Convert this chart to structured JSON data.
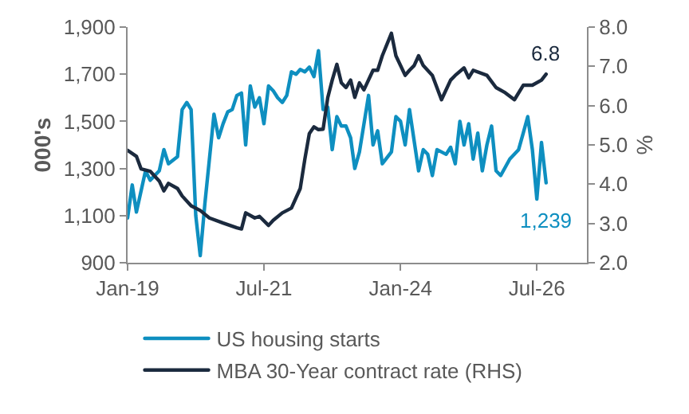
{
  "chart_data": {
    "type": "line",
    "ylabel": "000's",
    "y2label": "%",
    "xlim": [
      "2019-01-01",
      "2027-06-01"
    ],
    "xticks": [
      {
        "value": "2019-01-01",
        "label": "Jan-19"
      },
      {
        "value": "2021-07-01",
        "label": "Jul-21"
      },
      {
        "value": "2024-01-01",
        "label": "Jan-24"
      },
      {
        "value": "2026-07-01",
        "label": "Jul-26"
      }
    ],
    "ylim": [
      900,
      1900
    ],
    "yticks": [
      {
        "value": 900,
        "label": "900"
      },
      {
        "value": 1100,
        "label": "1,100"
      },
      {
        "value": 1300,
        "label": "1,300"
      },
      {
        "value": 1500,
        "label": "1,500"
      },
      {
        "value": 1700,
        "label": "1,700"
      },
      {
        "value": 1900,
        "label": "1,900"
      }
    ],
    "y2lim": [
      2,
      8
    ],
    "y2ticks": [
      {
        "value": 2,
        "label": "2.0"
      },
      {
        "value": 3,
        "label": "3.0"
      },
      {
        "value": 4,
        "label": "4.0"
      },
      {
        "value": 5,
        "label": "5.0"
      },
      {
        "value": 6,
        "label": "6.0"
      },
      {
        "value": 7,
        "label": "7.0"
      },
      {
        "value": 8,
        "label": "8.0"
      }
    ],
    "grid": false,
    "legend": "bottom",
    "marker": "none",
    "line_style": "solid",
    "series": [
      {
        "name": "US housing starts",
        "color": "#0e8fc0",
        "x": [
          "2019-01",
          "2019-02",
          "2019-03",
          "2019-05",
          "2019-06",
          "2019-08",
          "2019-09",
          "2019-10",
          "2019-12",
          "2020-01",
          "2020-02",
          "2020-03",
          "2020-04",
          "2020-05",
          "2020-06",
          "2020-08",
          "2020-09",
          "2020-10",
          "2020-11",
          "2020-12",
          "2021-01",
          "2021-02",
          "2021-03",
          "2021-04",
          "2021-05",
          "2021-06",
          "2021-07",
          "2021-08",
          "2021-09",
          "2021-10",
          "2021-11",
          "2021-12",
          "2022-01",
          "2022-02",
          "2022-03",
          "2022-04",
          "2022-05",
          "2022-06",
          "2022-07",
          "2022-08",
          "2022-09",
          "2022-10",
          "2022-11",
          "2022-12",
          "2023-01",
          "2023-02",
          "2023-03",
          "2023-04",
          "2023-06",
          "2023-07",
          "2023-08",
          "2023-09",
          "2023-11",
          "2023-12",
          "2024-01",
          "2024-02",
          "2024-03",
          "2024-05",
          "2024-06",
          "2024-07",
          "2024-08",
          "2024-09",
          "2024-11",
          "2024-12",
          "2025-01",
          "2025-02",
          "2025-03",
          "2025-04",
          "2025-05",
          "2025-06",
          "2025-07",
          "2025-08",
          "2025-09",
          "2025-10",
          "2025-11",
          "2026-01",
          "2026-03",
          "2026-04",
          "2026-05",
          "2026-06",
          "2026-07",
          "2026-08",
          "2026-09"
        ],
        "values": [
          1090,
          1230,
          1115,
          1290,
          1250,
          1290,
          1380,
          1320,
          1350,
          1550,
          1580,
          1550,
          1100,
          930,
          1150,
          1530,
          1430,
          1490,
          1540,
          1550,
          1610,
          1620,
          1400,
          1650,
          1560,
          1600,
          1490,
          1650,
          1630,
          1600,
          1580,
          1610,
          1710,
          1700,
          1720,
          1710,
          1730,
          1690,
          1800,
          1550,
          1560,
          1380,
          1520,
          1480,
          1480,
          1430,
          1300,
          1370,
          1610,
          1400,
          1460,
          1320,
          1370,
          1520,
          1500,
          1400,
          1550,
          1290,
          1380,
          1360,
          1270,
          1380,
          1360,
          1390,
          1320,
          1500,
          1400,
          1490,
          1340,
          1450,
          1290,
          1400,
          1480,
          1290,
          1270,
          1340,
          1380,
          1450,
          1520,
          1380,
          1170,
          1410,
          1239
        ],
        "value_labels": [
          null,
          null,
          null,
          null,
          null,
          null,
          null,
          null,
          null,
          null,
          null,
          null,
          null,
          null,
          null,
          null,
          null,
          null,
          null,
          null,
          null,
          null,
          null,
          null,
          null,
          null,
          null,
          null,
          null,
          null,
          null,
          null,
          null,
          null,
          null,
          null,
          null,
          null,
          null,
          null,
          null,
          null,
          null,
          null,
          null,
          null,
          null,
          null,
          null,
          null,
          null,
          null,
          null,
          null,
          null,
          null,
          null,
          null,
          null,
          null,
          null,
          null,
          null,
          null,
          null,
          null,
          null,
          null,
          null,
          null,
          null,
          null,
          null,
          null,
          null,
          null,
          null,
          null,
          null,
          null,
          null,
          null,
          "1,239"
        ]
      },
      {
        "name": "MBA 30-Year contract rate (RHS)",
        "color": "#1b2a3e",
        "axis": "y2",
        "x": [
          "2019-01",
          "2019-03",
          "2019-04",
          "2019-06",
          "2019-08",
          "2019-09",
          "2019-10",
          "2019-12",
          "2020-01",
          "2020-03",
          "2020-05",
          "2020-07",
          "2020-10",
          "2021-01",
          "2021-02",
          "2021-03",
          "2021-05",
          "2021-06",
          "2021-08",
          "2021-09",
          "2021-11",
          "2022-01",
          "2022-03",
          "2022-04",
          "2022-05",
          "2022-06",
          "2022-07",
          "2022-08",
          "2022-09",
          "2022-10",
          "2022-11",
          "2022-12",
          "2023-01",
          "2023-02",
          "2023-03",
          "2023-04",
          "2023-05",
          "2023-07",
          "2023-08",
          "2023-09",
          "2023-11",
          "2023-12",
          "2024-02",
          "2024-03",
          "2024-04",
          "2024-05",
          "2024-06",
          "2024-08",
          "2024-10",
          "2024-12",
          "2025-01",
          "2025-03",
          "2025-04",
          "2025-05",
          "2025-08",
          "2025-10",
          "2025-12",
          "2026-02",
          "2026-04",
          "2026-06",
          "2026-08",
          "2026-09"
        ],
        "values": [
          4.86,
          4.71,
          4.39,
          4.33,
          4.08,
          3.83,
          4.02,
          3.89,
          3.7,
          3.45,
          3.33,
          3.14,
          3.01,
          2.89,
          2.86,
          3.27,
          3.14,
          3.18,
          2.95,
          3.08,
          3.27,
          3.39,
          3.89,
          4.64,
          5.29,
          5.46,
          5.39,
          5.4,
          6.2,
          6.65,
          7.05,
          6.58,
          6.46,
          6.65,
          6.21,
          6.58,
          6.4,
          6.9,
          6.9,
          7.27,
          7.84,
          7.27,
          6.77,
          6.9,
          7.02,
          7.27,
          7.02,
          6.77,
          6.15,
          6.65,
          6.77,
          6.96,
          6.71,
          6.9,
          6.77,
          6.46,
          6.33,
          6.15,
          6.52,
          6.52,
          6.65,
          6.8
        ],
        "value_labels": [
          null,
          null,
          null,
          null,
          null,
          null,
          null,
          null,
          null,
          null,
          null,
          null,
          null,
          null,
          null,
          null,
          null,
          null,
          null,
          null,
          null,
          null,
          null,
          null,
          null,
          null,
          null,
          null,
          null,
          null,
          null,
          null,
          null,
          null,
          null,
          null,
          null,
          null,
          null,
          null,
          null,
          null,
          null,
          null,
          null,
          null,
          null,
          null,
          null,
          null,
          null,
          null,
          null,
          null,
          null,
          null,
          null,
          null,
          null,
          null,
          null,
          "6.8"
        ]
      }
    ]
  }
}
